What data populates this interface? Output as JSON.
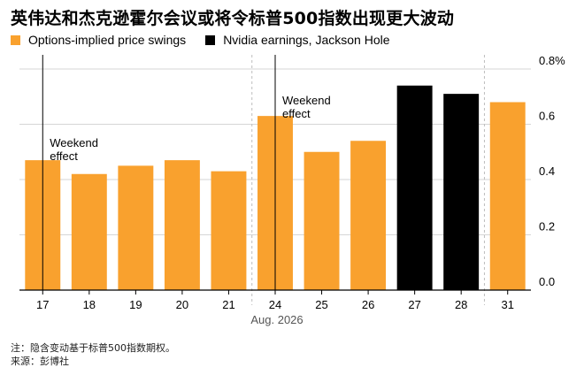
{
  "title": "英伟达和杰克逊霍尔会议或将令标普500指数出现更大波动",
  "legend": [
    {
      "label": "Options-implied price swings",
      "color": "#F9A12E"
    },
    {
      "label": "Nvidia earnings, Jackson Hole",
      "color": "#000000"
    }
  ],
  "footer": {
    "note": "注：隐含变动基于标普500指数期权。",
    "source": "来源：彭博社"
  },
  "chart_data": {
    "type": "bar",
    "categories": [
      "17",
      "18",
      "19",
      "20",
      "21",
      "24",
      "25",
      "26",
      "27",
      "28",
      "31"
    ],
    "series": [
      {
        "name": "Options-implied price swings",
        "values": [
          0.47,
          0.42,
          0.45,
          0.47,
          0.43,
          0.63,
          0.5,
          0.54,
          0.74,
          0.71,
          0.68
        ]
      }
    ],
    "highlight": [
      false,
      false,
      false,
      false,
      false,
      false,
      false,
      false,
      true,
      true,
      false
    ],
    "colors": {
      "normal": "#F9A12E",
      "highlight": "#000000"
    },
    "x_month_label": "Aug. 2026",
    "y_ticks": [
      "0.0",
      "0.2",
      "0.4",
      "0.6",
      "0.8%"
    ],
    "ylim": [
      0,
      0.8
    ],
    "grid": true,
    "annotations": [
      {
        "text": "Weekend effect",
        "category": "17"
      },
      {
        "text": "Weekend effect",
        "category": "24"
      }
    ]
  }
}
